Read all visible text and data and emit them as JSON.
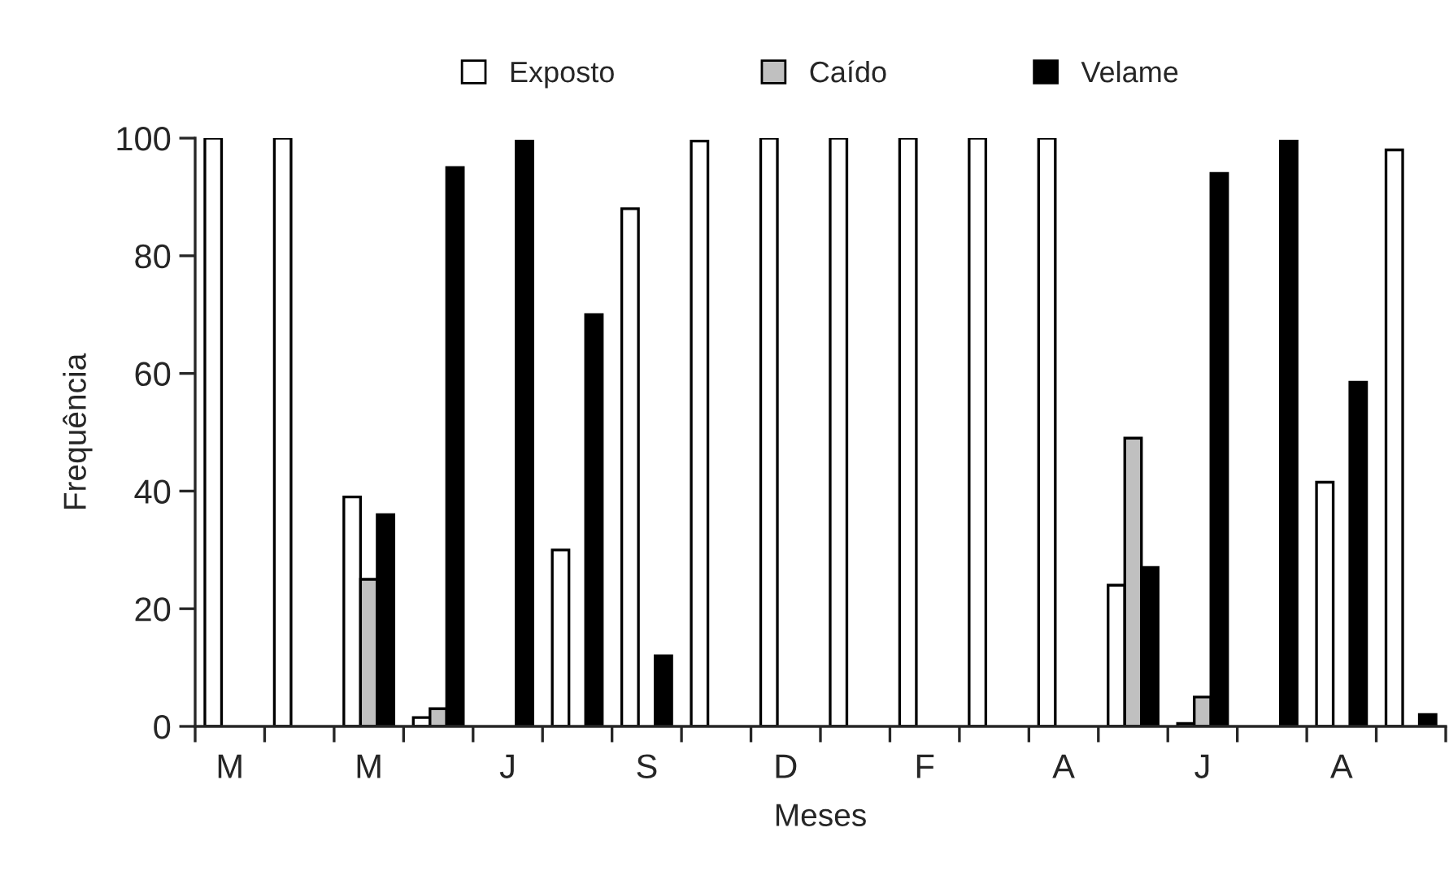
{
  "chart_data": {
    "type": "bar",
    "categories": [
      "M",
      null,
      "M",
      null,
      "J",
      null,
      "S",
      null,
      "D",
      null,
      "F",
      null,
      "A",
      null,
      "J",
      null,
      "A",
      null
    ],
    "xlabel": "Meses",
    "ylabel": "Frequência",
    "ylim": [
      0,
      100
    ],
    "yticks": [
      0,
      20,
      40,
      60,
      80,
      100
    ],
    "legend": "top",
    "grid": false,
    "series": [
      {
        "name": "Exposto",
        "color": "#ffffff",
        "values": [
          100,
          100,
          39,
          1.5,
          null,
          30,
          88,
          99.5,
          100,
          100,
          100,
          100,
          100,
          24,
          0.5,
          null,
          41.5,
          98
        ]
      },
      {
        "name": "Caído",
        "color": "#c0c0c0",
        "values": [
          null,
          null,
          25,
          3,
          null,
          null,
          null,
          null,
          null,
          null,
          null,
          null,
          null,
          49,
          5,
          null,
          null,
          null
        ]
      },
      {
        "name": "Velame",
        "color": "#000000",
        "values": [
          null,
          null,
          36,
          95,
          99.5,
          70,
          12,
          null,
          null,
          null,
          null,
          null,
          null,
          27,
          94,
          99.5,
          58.5,
          2
        ]
      }
    ]
  }
}
